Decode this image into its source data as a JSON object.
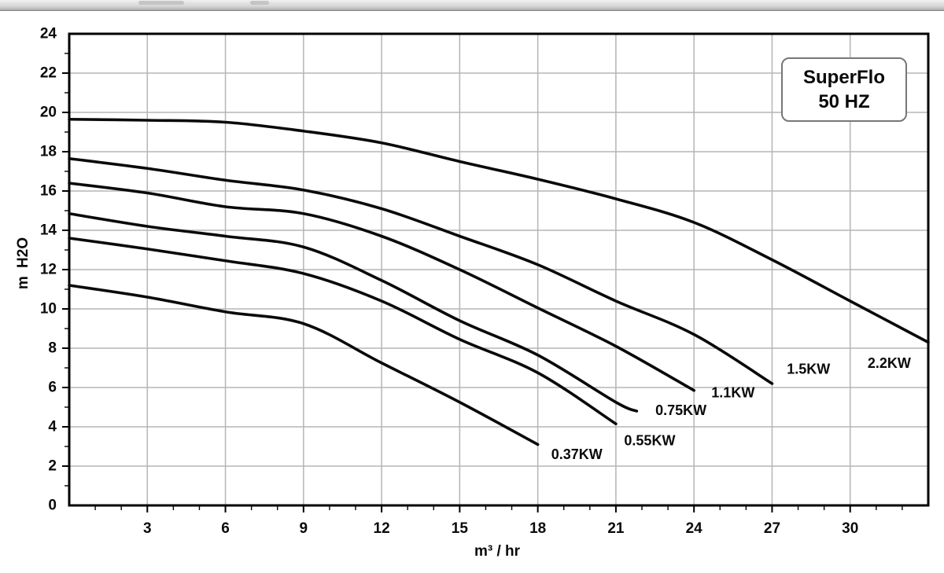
{
  "window": {
    "top_strip": "window-edge"
  },
  "legend": {
    "line1": "SuperFlo",
    "line2": "50 HZ"
  },
  "chart_data": {
    "type": "line",
    "title": "SuperFlo 50 HZ",
    "xlabel": "m³ / hr",
    "ylabel": "m H2O",
    "xlim": [
      0,
      33
    ],
    "ylim": [
      0,
      24
    ],
    "x_major_ticks": [
      3,
      6,
      9,
      12,
      15,
      18,
      21,
      24,
      27,
      30
    ],
    "x_minor_step": 1,
    "y_major_ticks": [
      0,
      2,
      4,
      6,
      8,
      10,
      12,
      14,
      16,
      18,
      20,
      22,
      24
    ],
    "y_minor_step": 1,
    "grid": {
      "x_every": 3,
      "y_every": 2,
      "color": "#b5b5b5",
      "on": true
    },
    "line_color": "#0a0a0a",
    "border_color": "#000000",
    "background": "#ffffff",
    "legend_position": "top-right",
    "series": [
      {
        "name": "2.2KW",
        "points": [
          [
            0,
            19.65
          ],
          [
            3,
            19.6
          ],
          [
            6,
            19.5
          ],
          [
            9,
            19.05
          ],
          [
            12,
            18.45
          ],
          [
            15,
            17.5
          ],
          [
            18,
            16.6
          ],
          [
            21,
            15.6
          ],
          [
            24,
            14.4
          ],
          [
            27,
            12.5
          ],
          [
            30,
            10.4
          ],
          [
            33,
            8.3
          ]
        ],
        "label_pos": [
          31.5,
          7.25
        ]
      },
      {
        "name": "1.5KW",
        "points": [
          [
            0,
            17.65
          ],
          [
            3,
            17.15
          ],
          [
            6,
            16.55
          ],
          [
            9,
            16.05
          ],
          [
            12,
            15.1
          ],
          [
            15,
            13.7
          ],
          [
            18,
            12.25
          ],
          [
            21,
            10.4
          ],
          [
            24,
            8.7
          ],
          [
            27,
            6.2
          ]
        ],
        "label_pos": [
          28.4,
          6.95
        ]
      },
      {
        "name": "1.1KW",
        "points": [
          [
            0,
            16.4
          ],
          [
            3,
            15.9
          ],
          [
            6,
            15.2
          ],
          [
            9,
            14.85
          ],
          [
            12,
            13.7
          ],
          [
            15,
            12.0
          ],
          [
            18,
            10.05
          ],
          [
            21,
            8.1
          ],
          [
            24,
            5.85
          ]
        ],
        "label_pos": [
          25.5,
          5.75
        ]
      },
      {
        "name": "0.75KW",
        "points": [
          [
            0,
            14.85
          ],
          [
            3,
            14.2
          ],
          [
            6,
            13.7
          ],
          [
            9,
            13.15
          ],
          [
            12,
            11.45
          ],
          [
            15,
            9.4
          ],
          [
            18,
            7.65
          ],
          [
            21,
            5.25
          ],
          [
            21.8,
            4.8
          ]
        ],
        "label_pos": [
          23.5,
          4.85
        ]
      },
      {
        "name": "0.55KW",
        "points": [
          [
            0,
            13.6
          ],
          [
            3,
            13.05
          ],
          [
            6,
            12.45
          ],
          [
            9,
            11.8
          ],
          [
            12,
            10.4
          ],
          [
            15,
            8.45
          ],
          [
            18,
            6.75
          ],
          [
            21,
            4.15
          ]
        ],
        "label_pos": [
          22.3,
          3.3
        ]
      },
      {
        "name": "0.37KW",
        "points": [
          [
            0,
            11.2
          ],
          [
            3,
            10.6
          ],
          [
            6,
            9.85
          ],
          [
            9,
            9.25
          ],
          [
            12,
            7.25
          ],
          [
            15,
            5.25
          ],
          [
            18,
            3.1
          ]
        ],
        "label_pos": [
          19.5,
          2.6
        ]
      }
    ]
  }
}
